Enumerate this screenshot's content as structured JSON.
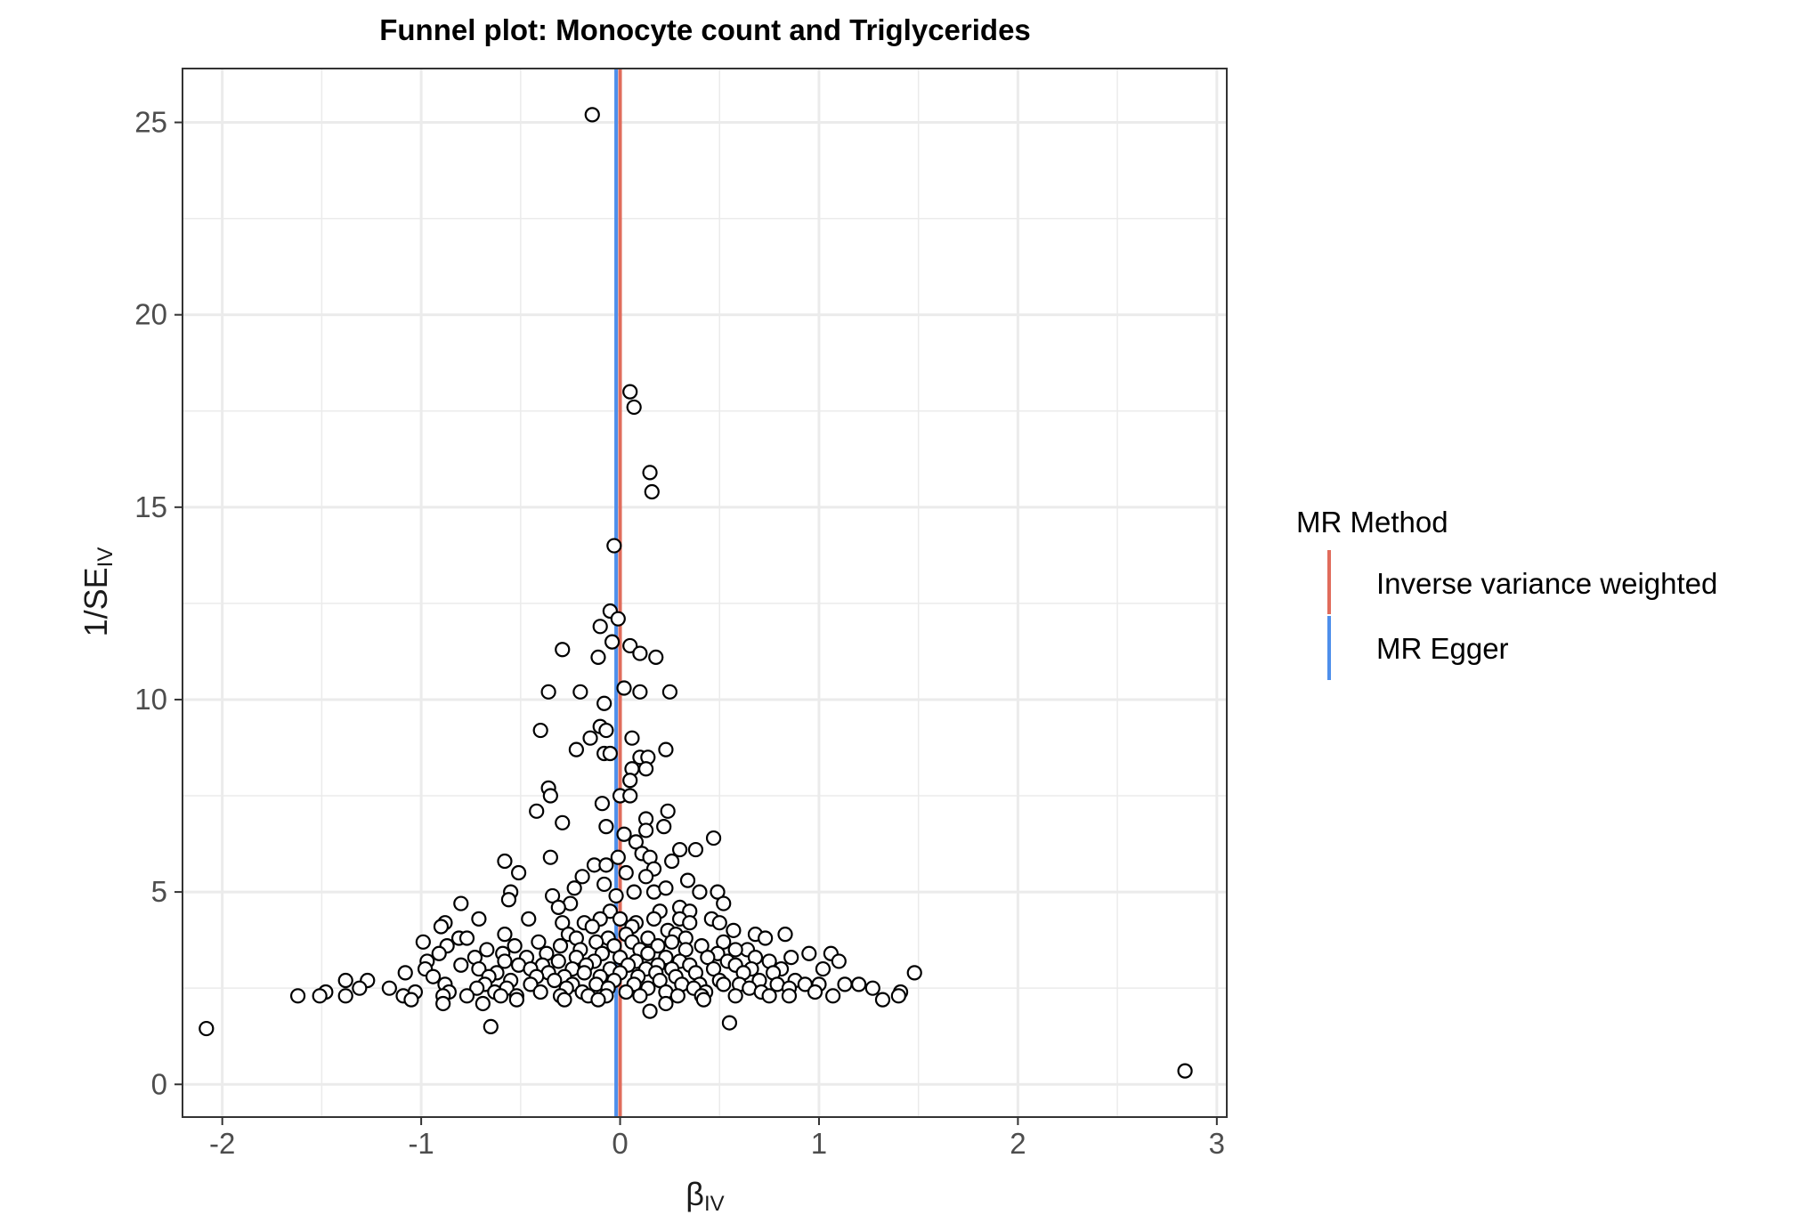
{
  "chart_data": {
    "type": "scatter",
    "title": "Funnel plot: Monocyte count and Triglycerides",
    "xlabel": "β",
    "xlabel_sub": "IV",
    "ylabel": "1/SE",
    "ylabel_sub": "IV",
    "xlim": [
      -2.2,
      3.05
    ],
    "ylim": [
      -0.85,
      26.4
    ],
    "x_ticks": [
      -2,
      -1,
      0,
      1,
      2,
      3
    ],
    "x_tick_labels": [
      "-2",
      "-1",
      "0",
      "1",
      "2",
      "3"
    ],
    "y_ticks": [
      0,
      5,
      10,
      15,
      20,
      25
    ],
    "y_tick_labels": [
      "0",
      "5",
      "10",
      "15",
      "20",
      "25"
    ],
    "grid": true,
    "legend": {
      "title": "MR Method",
      "position": "right",
      "entries": [
        {
          "label": "Inverse variance weighted",
          "color": "#E06C5C"
        },
        {
          "label": "MR Egger",
          "color": "#4E8FEB"
        }
      ]
    },
    "vlines": [
      {
        "name": "Inverse variance weighted",
        "x": 0.0,
        "color": "#E06C5C"
      },
      {
        "name": "MR Egger",
        "x": -0.02,
        "color": "#4E8FEB"
      }
    ],
    "points": [
      [
        -0.14,
        25.2
      ],
      [
        0.05,
        18.0
      ],
      [
        0.07,
        17.6
      ],
      [
        0.15,
        15.9
      ],
      [
        0.16,
        15.4
      ],
      [
        -0.03,
        14.0
      ],
      [
        -0.05,
        12.3
      ],
      [
        -0.01,
        12.1
      ],
      [
        -0.1,
        11.9
      ],
      [
        -0.29,
        11.3
      ],
      [
        -0.04,
        11.5
      ],
      [
        0.05,
        11.4
      ],
      [
        0.1,
        11.2
      ],
      [
        0.18,
        11.1
      ],
      [
        -0.11,
        11.1
      ],
      [
        -0.36,
        10.2
      ],
      [
        -0.2,
        10.2
      ],
      [
        0.02,
        10.3
      ],
      [
        0.1,
        10.2
      ],
      [
        0.25,
        10.2
      ],
      [
        -0.08,
        9.9
      ],
      [
        -0.4,
        9.2
      ],
      [
        -0.15,
        9.0
      ],
      [
        -0.1,
        9.3
      ],
      [
        -0.07,
        9.2
      ],
      [
        0.06,
        9.0
      ],
      [
        0.23,
        8.7
      ],
      [
        -0.22,
        8.7
      ],
      [
        -0.08,
        8.6
      ],
      [
        -0.05,
        8.6
      ],
      [
        0.1,
        8.5
      ],
      [
        0.14,
        8.5
      ],
      [
        0.06,
        8.2
      ],
      [
        0.13,
        8.2
      ],
      [
        0.05,
        7.9
      ],
      [
        -0.36,
        7.7
      ],
      [
        -0.35,
        7.5
      ],
      [
        0.0,
        7.5
      ],
      [
        0.05,
        7.5
      ],
      [
        -0.42,
        7.1
      ],
      [
        -0.09,
        7.3
      ],
      [
        0.24,
        7.1
      ],
      [
        0.13,
        6.9
      ],
      [
        -0.29,
        6.8
      ],
      [
        0.22,
        6.7
      ],
      [
        -0.07,
        6.7
      ],
      [
        0.13,
        6.6
      ],
      [
        0.47,
        6.4
      ],
      [
        0.02,
        6.5
      ],
      [
        0.08,
        6.3
      ],
      [
        0.3,
        6.1
      ],
      [
        0.38,
        6.1
      ],
      [
        0.11,
        6.0
      ],
      [
        -0.35,
        5.9
      ],
      [
        -0.01,
        5.9
      ],
      [
        0.15,
        5.9
      ],
      [
        0.26,
        5.8
      ],
      [
        -0.58,
        5.8
      ],
      [
        -0.13,
        5.7
      ],
      [
        -0.07,
        5.7
      ],
      [
        0.17,
        5.6
      ],
      [
        0.03,
        5.5
      ],
      [
        -0.51,
        5.5
      ],
      [
        -0.19,
        5.4
      ],
      [
        0.13,
        5.4
      ],
      [
        0.34,
        5.3
      ],
      [
        -0.08,
        5.2
      ],
      [
        -0.23,
        5.1
      ],
      [
        0.07,
        5.0
      ],
      [
        0.17,
        5.0
      ],
      [
        0.4,
        5.0
      ],
      [
        0.23,
        5.1
      ],
      [
        -0.55,
        5.0
      ],
      [
        -0.34,
        4.9
      ],
      [
        -0.02,
        4.9
      ],
      [
        0.49,
        5.0
      ],
      [
        -0.56,
        4.8
      ],
      [
        -0.25,
        4.7
      ],
      [
        0.3,
        4.6
      ],
      [
        -0.8,
        4.7
      ],
      [
        0.52,
        4.7
      ],
      [
        -0.31,
        4.6
      ],
      [
        -0.05,
        4.5
      ],
      [
        0.2,
        4.5
      ],
      [
        0.35,
        4.5
      ],
      [
        -0.46,
        4.3
      ],
      [
        -0.71,
        4.3
      ],
      [
        -0.1,
        4.3
      ],
      [
        0.0,
        4.3
      ],
      [
        0.17,
        4.3
      ],
      [
        0.3,
        4.3
      ],
      [
        0.46,
        4.3
      ],
      [
        -0.88,
        4.2
      ],
      [
        -0.29,
        4.2
      ],
      [
        -0.18,
        4.2
      ],
      [
        0.08,
        4.2
      ],
      [
        0.35,
        4.2
      ],
      [
        0.5,
        4.2
      ],
      [
        -0.9,
        4.1
      ],
      [
        -0.14,
        4.1
      ],
      [
        0.06,
        4.1
      ],
      [
        0.24,
        4.0
      ],
      [
        0.57,
        4.0
      ],
      [
        -0.58,
        3.9
      ],
      [
        -0.26,
        3.9
      ],
      [
        0.03,
        3.9
      ],
      [
        0.28,
        3.9
      ],
      [
        0.68,
        3.9
      ],
      [
        0.83,
        3.9
      ],
      [
        -0.81,
        3.8
      ],
      [
        -0.77,
        3.8
      ],
      [
        -0.22,
        3.8
      ],
      [
        -0.06,
        3.8
      ],
      [
        0.14,
        3.8
      ],
      [
        0.33,
        3.8
      ],
      [
        0.73,
        3.8
      ],
      [
        -0.99,
        3.7
      ],
      [
        -0.41,
        3.7
      ],
      [
        -0.12,
        3.7
      ],
      [
        0.06,
        3.7
      ],
      [
        0.26,
        3.7
      ],
      [
        0.52,
        3.7
      ],
      [
        -0.87,
        3.6
      ],
      [
        -0.53,
        3.6
      ],
      [
        -0.3,
        3.6
      ],
      [
        -0.03,
        3.6
      ],
      [
        0.19,
        3.6
      ],
      [
        0.41,
        3.6
      ],
      [
        0.64,
        3.5
      ],
      [
        -0.67,
        3.5
      ],
      [
        -0.2,
        3.5
      ],
      [
        0.1,
        3.5
      ],
      [
        0.33,
        3.5
      ],
      [
        0.58,
        3.5
      ],
      [
        -0.91,
        3.4
      ],
      [
        -0.59,
        3.4
      ],
      [
        -0.37,
        3.4
      ],
      [
        -0.09,
        3.4
      ],
      [
        0.14,
        3.4
      ],
      [
        0.49,
        3.4
      ],
      [
        0.95,
        3.4
      ],
      [
        1.06,
        3.4
      ],
      [
        -0.73,
        3.3
      ],
      [
        -0.47,
        3.3
      ],
      [
        -0.22,
        3.3
      ],
      [
        0.0,
        3.3
      ],
      [
        0.23,
        3.3
      ],
      [
        0.44,
        3.3
      ],
      [
        0.68,
        3.3
      ],
      [
        0.86,
        3.3
      ],
      [
        -0.97,
        3.2
      ],
      [
        -0.58,
        3.2
      ],
      [
        -0.31,
        3.2
      ],
      [
        -0.13,
        3.2
      ],
      [
        0.08,
        3.2
      ],
      [
        0.3,
        3.2
      ],
      [
        0.54,
        3.2
      ],
      [
        0.75,
        3.2
      ],
      [
        1.1,
        3.2
      ],
      [
        -0.8,
        3.1
      ],
      [
        -0.51,
        3.1
      ],
      [
        -0.39,
        3.1
      ],
      [
        -0.17,
        3.1
      ],
      [
        0.04,
        3.1
      ],
      [
        0.19,
        3.1
      ],
      [
        0.35,
        3.1
      ],
      [
        0.58,
        3.1
      ],
      [
        0.66,
        3.0
      ],
      [
        -0.71,
        3.0
      ],
      [
        -0.45,
        3.0
      ],
      [
        -0.24,
        3.0
      ],
      [
        -0.05,
        3.0
      ],
      [
        0.13,
        3.0
      ],
      [
        0.26,
        3.0
      ],
      [
        0.47,
        3.0
      ],
      [
        0.81,
        3.0
      ],
      [
        1.02,
        3.0
      ],
      [
        -0.98,
        3.0
      ],
      [
        1.48,
        2.9
      ],
      [
        -1.08,
        2.9
      ],
      [
        -0.62,
        2.9
      ],
      [
        -0.36,
        2.9
      ],
      [
        -0.18,
        2.9
      ],
      [
        0.0,
        2.9
      ],
      [
        0.18,
        2.9
      ],
      [
        0.38,
        2.9
      ],
      [
        0.62,
        2.9
      ],
      [
        0.77,
        2.9
      ],
      [
        -0.94,
        2.8
      ],
      [
        -0.66,
        2.8
      ],
      [
        -0.42,
        2.8
      ],
      [
        -0.28,
        2.8
      ],
      [
        -0.1,
        2.8
      ],
      [
        0.09,
        2.8
      ],
      [
        0.28,
        2.8
      ],
      [
        0.5,
        2.7
      ],
      [
        0.7,
        2.7
      ],
      [
        0.88,
        2.7
      ],
      [
        -1.27,
        2.7
      ],
      [
        -1.38,
        2.7
      ],
      [
        -0.55,
        2.7
      ],
      [
        -0.33,
        2.7
      ],
      [
        -0.03,
        2.7
      ],
      [
        0.2,
        2.7
      ],
      [
        0.4,
        2.6
      ],
      [
        0.6,
        2.6
      ],
      [
        0.93,
        2.6
      ],
      [
        1.2,
        2.6
      ],
      [
        -0.88,
        2.6
      ],
      [
        -0.68,
        2.6
      ],
      [
        -0.45,
        2.6
      ],
      [
        -0.24,
        2.6
      ],
      [
        -0.12,
        2.6
      ],
      [
        0.07,
        2.6
      ],
      [
        0.31,
        2.6
      ],
      [
        0.52,
        2.6
      ],
      [
        0.79,
        2.6
      ],
      [
        1.0,
        2.6
      ],
      [
        1.13,
        2.6
      ],
      [
        -1.16,
        2.5
      ],
      [
        -1.31,
        2.5
      ],
      [
        -0.72,
        2.5
      ],
      [
        -0.57,
        2.5
      ],
      [
        -0.27,
        2.5
      ],
      [
        -0.06,
        2.5
      ],
      [
        0.14,
        2.5
      ],
      [
        0.37,
        2.5
      ],
      [
        0.65,
        2.5
      ],
      [
        0.85,
        2.5
      ],
      [
        1.27,
        2.5
      ],
      [
        -1.48,
        2.4
      ],
      [
        -1.03,
        2.4
      ],
      [
        -0.86,
        2.4
      ],
      [
        -0.63,
        2.4
      ],
      [
        -0.4,
        2.4
      ],
      [
        -0.19,
        2.4
      ],
      [
        0.03,
        2.4
      ],
      [
        0.23,
        2.4
      ],
      [
        0.43,
        2.4
      ],
      [
        0.71,
        2.4
      ],
      [
        0.98,
        2.4
      ],
      [
        1.41,
        2.4
      ],
      [
        -1.51,
        2.3
      ],
      [
        -1.62,
        2.3
      ],
      [
        -1.38,
        2.3
      ],
      [
        -1.09,
        2.3
      ],
      [
        -0.89,
        2.3
      ],
      [
        -0.77,
        2.3
      ],
      [
        -0.6,
        2.3
      ],
      [
        -0.52,
        2.3
      ],
      [
        -0.3,
        2.3
      ],
      [
        -0.16,
        2.3
      ],
      [
        -0.07,
        2.3
      ],
      [
        0.1,
        2.3
      ],
      [
        0.29,
        2.3
      ],
      [
        0.41,
        2.3
      ],
      [
        0.58,
        2.3
      ],
      [
        0.75,
        2.3
      ],
      [
        0.85,
        2.3
      ],
      [
        1.07,
        2.3
      ],
      [
        1.4,
        2.3
      ],
      [
        -1.05,
        2.2
      ],
      [
        -0.52,
        2.2
      ],
      [
        -0.28,
        2.2
      ],
      [
        -0.11,
        2.2
      ],
      [
        0.42,
        2.2
      ],
      [
        1.32,
        2.2
      ],
      [
        -0.89,
        2.1
      ],
      [
        -0.69,
        2.1
      ],
      [
        0.23,
        2.1
      ],
      [
        0.15,
        1.9
      ],
      [
        -2.08,
        1.45
      ],
      [
        -0.65,
        1.5
      ],
      [
        0.55,
        1.6
      ],
      [
        2.84,
        0.35
      ]
    ]
  }
}
